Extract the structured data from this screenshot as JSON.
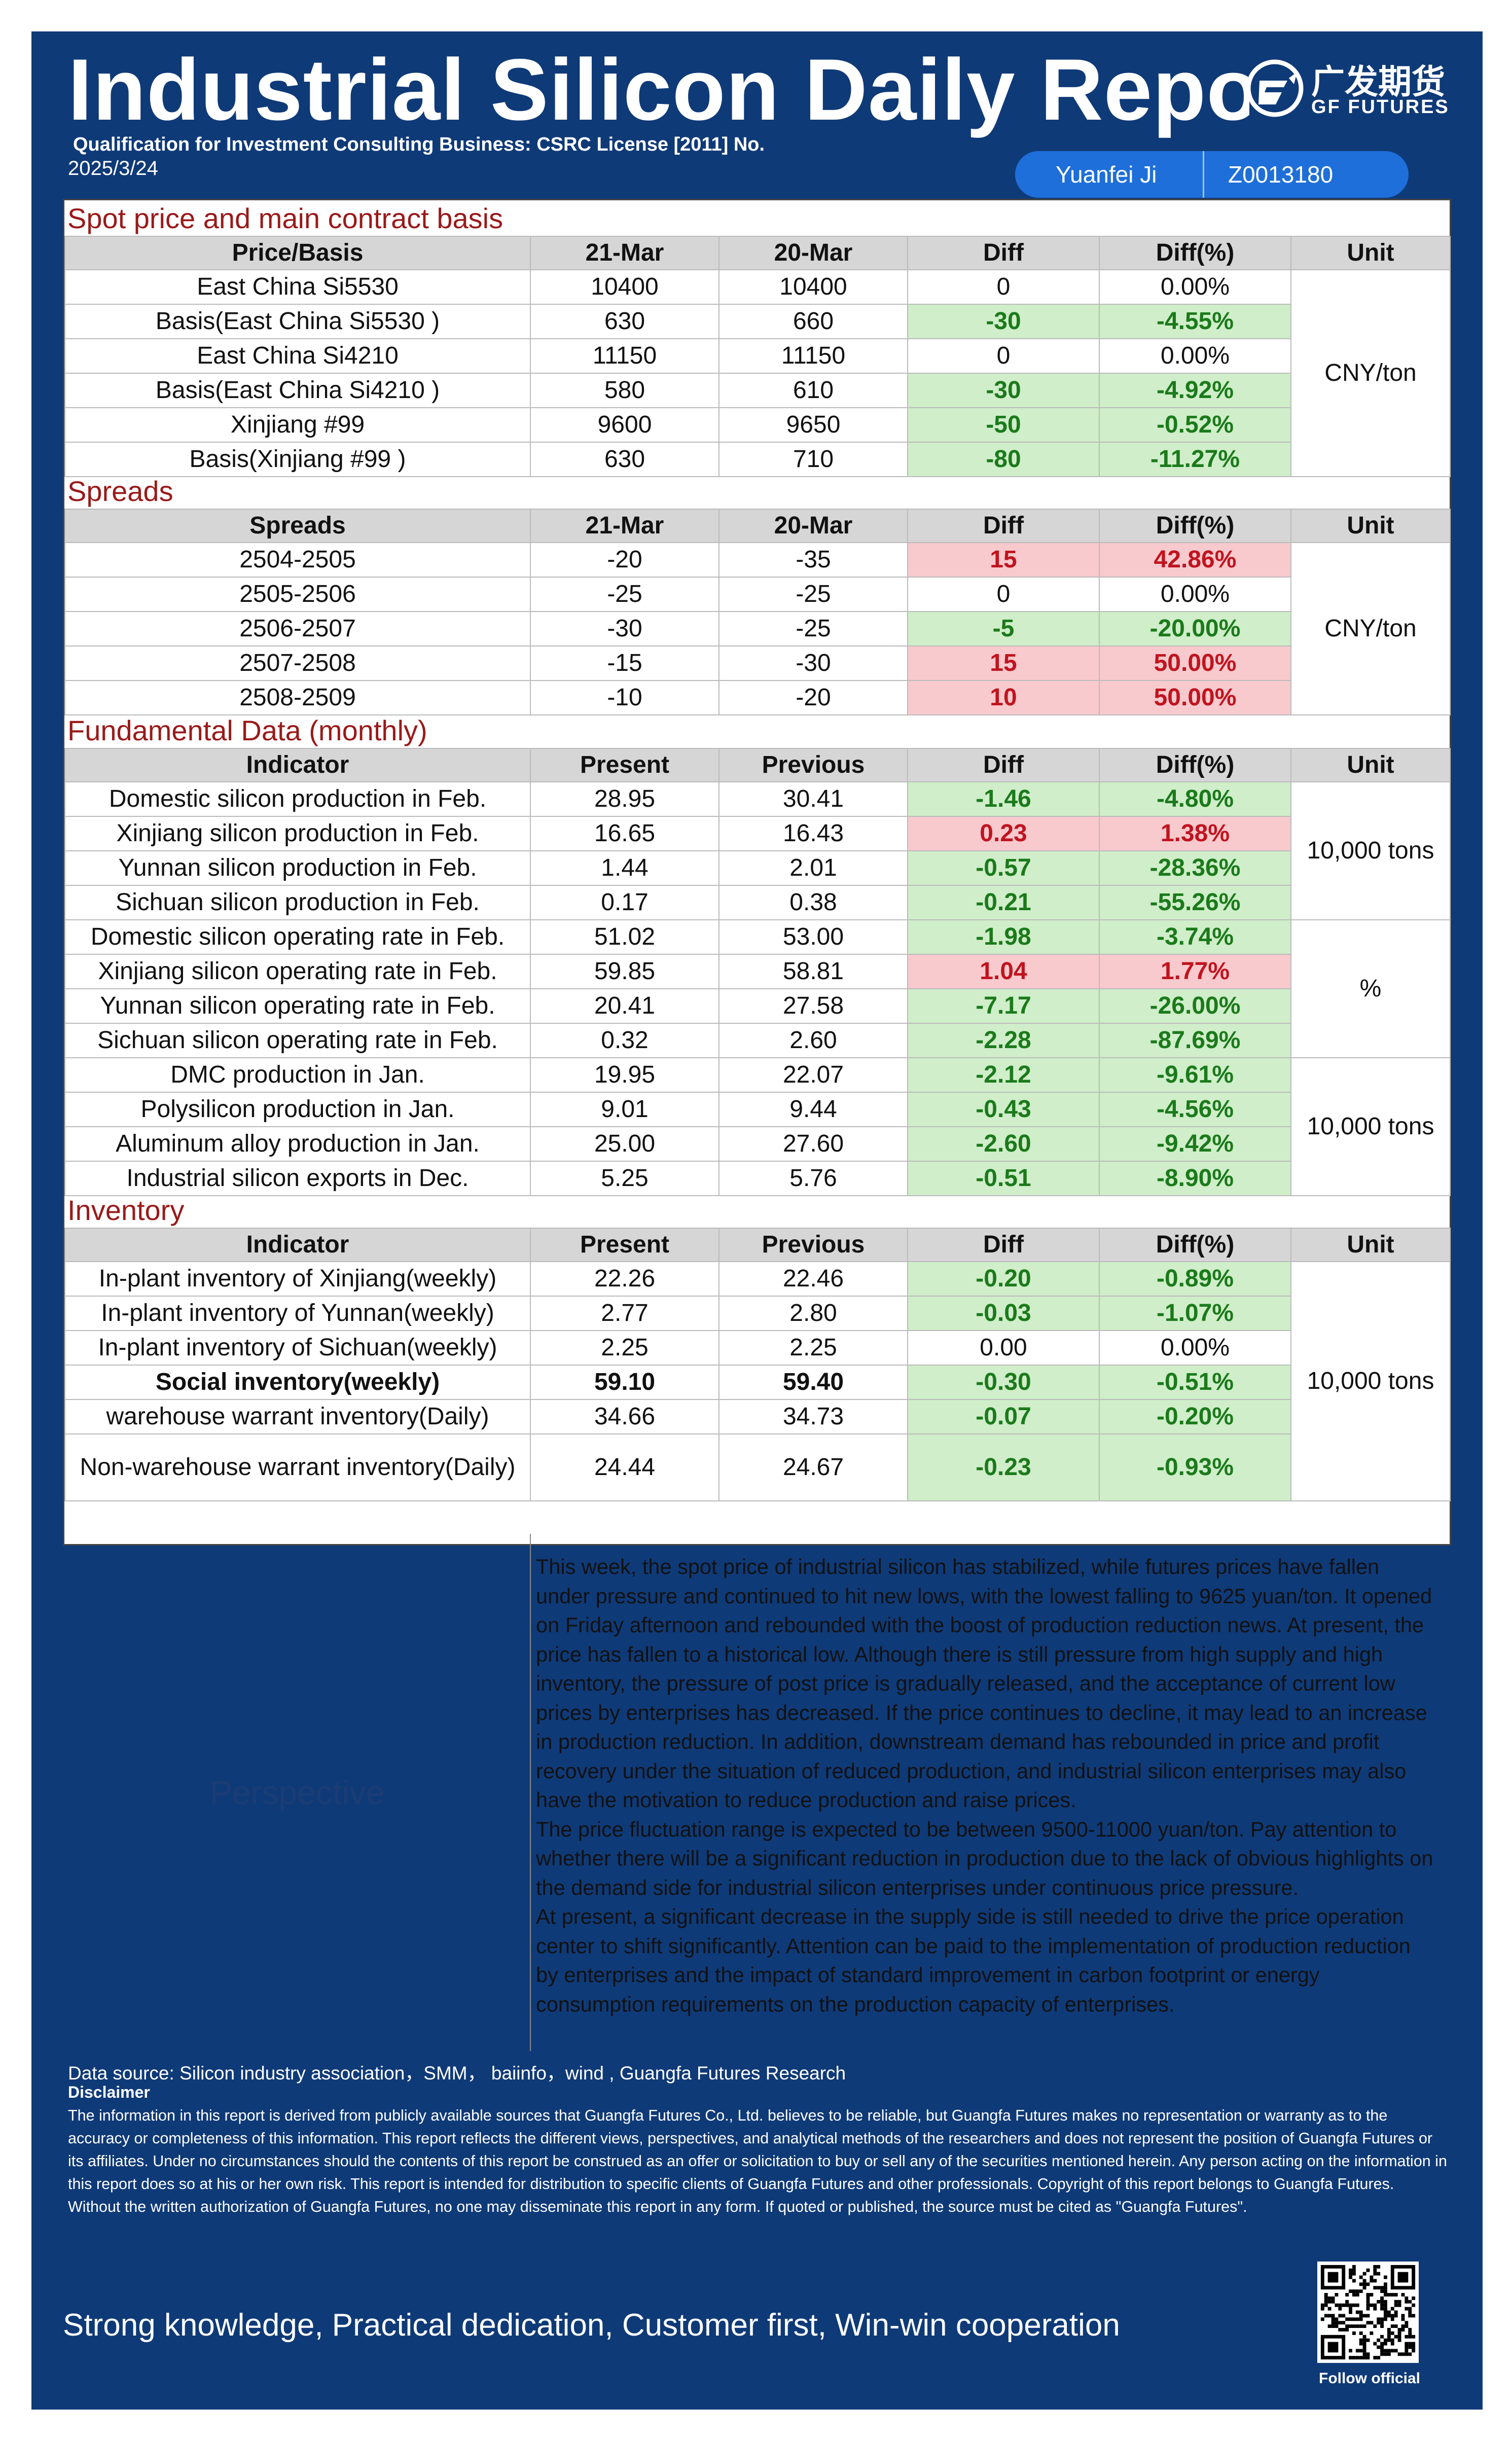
{
  "header": {
    "title": "Industrial Silicon Daily Repo",
    "qualification": "Qualification for Investment Consulting Business: CSRC License [2011] No.",
    "date": "2025/3/24",
    "logo_cn": "广发期货",
    "logo_en": "GF FUTURES",
    "analyst": {
      "name": "Yuanfei Ji",
      "license": "Z0013180"
    },
    "colors": {
      "frame": "#0f3a78",
      "pill": "#1e6fd9",
      "section_title": "#9a1a1a",
      "decrease": "#cfeec9",
      "increase": "#f8c9cd"
    }
  },
  "spot": {
    "title": "Spot price and main contract basis",
    "headers": [
      "Price/Basis",
      "21-Mar",
      "20-Mar",
      "Diff",
      "Diff(%)",
      "Unit"
    ],
    "unit": "CNY/ton",
    "rows": [
      {
        "name": "East China Si5530",
        "cur": "10400",
        "prev": "10400",
        "diff": "0",
        "pct": "0.00%",
        "trend": "flat"
      },
      {
        "name": "Basis(East China Si5530 )",
        "cur": "630",
        "prev": "660",
        "diff": "-30",
        "pct": "-4.55%",
        "trend": "neg"
      },
      {
        "name": "East China Si4210",
        "cur": "11150",
        "prev": "11150",
        "diff": "0",
        "pct": "0.00%",
        "trend": "flat"
      },
      {
        "name": "Basis(East China Si4210 )",
        "cur": "580",
        "prev": "610",
        "diff": "-30",
        "pct": "-4.92%",
        "trend": "neg"
      },
      {
        "name": "Xinjiang #99",
        "cur": "9600",
        "prev": "9650",
        "diff": "-50",
        "pct": "-0.52%",
        "trend": "neg"
      },
      {
        "name": "Basis(Xinjiang #99 )",
        "cur": "630",
        "prev": "710",
        "diff": "-80",
        "pct": "-11.27%",
        "trend": "neg"
      }
    ]
  },
  "spreads": {
    "title": "Spreads",
    "headers": [
      "Spreads",
      "21-Mar",
      "20-Mar",
      "Diff",
      "Diff(%)",
      "Unit"
    ],
    "unit": "CNY/ton",
    "rows": [
      {
        "name": "2504-2505",
        "cur": "-20",
        "prev": "-35",
        "diff": "15",
        "pct": "42.86%",
        "trend": "pos"
      },
      {
        "name": "2505-2506",
        "cur": "-25",
        "prev": "-25",
        "diff": "0",
        "pct": "0.00%",
        "trend": "flat"
      },
      {
        "name": "2506-2507",
        "cur": "-30",
        "prev": "-25",
        "diff": "-5",
        "pct": "-20.00%",
        "trend": "neg"
      },
      {
        "name": "2507-2508",
        "cur": "-15",
        "prev": "-30",
        "diff": "15",
        "pct": "50.00%",
        "trend": "pos"
      },
      {
        "name": "2508-2509",
        "cur": "-10",
        "prev": "-20",
        "diff": "10",
        "pct": "50.00%",
        "trend": "pos"
      }
    ]
  },
  "fundamental": {
    "title": "Fundamental Data (monthly)",
    "headers": [
      "Indicator",
      "Present",
      "Previous",
      "Diff",
      "Diff(%)",
      "Unit"
    ],
    "units": [
      "10,000 tons",
      "%",
      "10,000 tons"
    ],
    "rows": [
      {
        "name": "Domestic silicon production in Feb.",
        "cur": "28.95",
        "prev": "30.41",
        "diff": "-1.46",
        "pct": "-4.80%",
        "trend": "neg"
      },
      {
        "name": "Xinjiang silicon production in Feb.",
        "cur": "16.65",
        "prev": "16.43",
        "diff": "0.23",
        "pct": "1.38%",
        "trend": "pos"
      },
      {
        "name": "Yunnan silicon production in Feb.",
        "cur": "1.44",
        "prev": "2.01",
        "diff": "-0.57",
        "pct": "-28.36%",
        "trend": "neg"
      },
      {
        "name": "Sichuan silicon production in Feb.",
        "cur": "0.17",
        "prev": "0.38",
        "diff": "-0.21",
        "pct": "-55.26%",
        "trend": "neg"
      },
      {
        "name": "Domestic silicon operating rate in Feb.",
        "cur": "51.02",
        "prev": "53.00",
        "diff": "-1.98",
        "pct": "-3.74%",
        "trend": "neg"
      },
      {
        "name": "Xinjiang silicon operating rate in Feb.",
        "cur": "59.85",
        "prev": "58.81",
        "diff": "1.04",
        "pct": "1.77%",
        "trend": "pos"
      },
      {
        "name": "Yunnan silicon operating rate in Feb.",
        "cur": "20.41",
        "prev": "27.58",
        "diff": "-7.17",
        "pct": "-26.00%",
        "trend": "neg"
      },
      {
        "name": "Sichuan silicon operating rate in Feb.",
        "cur": "0.32",
        "prev": "2.60",
        "diff": "-2.28",
        "pct": "-87.69%",
        "trend": "neg"
      },
      {
        "name": "DMC production in Jan.",
        "cur": "19.95",
        "prev": "22.07",
        "diff": "-2.12",
        "pct": "-9.61%",
        "trend": "neg"
      },
      {
        "name": "Polysilicon production in Jan.",
        "cur": "9.01",
        "prev": "9.44",
        "diff": "-0.43",
        "pct": "-4.56%",
        "trend": "neg"
      },
      {
        "name": "Aluminum alloy production in Jan.",
        "cur": "25.00",
        "prev": "27.60",
        "diff": "-2.60",
        "pct": "-9.42%",
        "trend": "neg"
      },
      {
        "name": "Industrial silicon exports in Dec.",
        "cur": "5.25",
        "prev": "5.76",
        "diff": "-0.51",
        "pct": "-8.90%",
        "trend": "neg"
      }
    ]
  },
  "inventory": {
    "title": "Inventory",
    "headers": [
      "Indicator",
      "Present",
      "Previous",
      "Diff",
      "Diff(%)",
      "Unit"
    ],
    "unit": "10,000 tons",
    "rows": [
      {
        "name": "In-plant inventory of Xinjiang(weekly)",
        "cur": "22.26",
        "prev": "22.46",
        "diff": "-0.20",
        "pct": "-0.89%",
        "trend": "neg"
      },
      {
        "name": "In-plant inventory of Yunnan(weekly)",
        "cur": "2.77",
        "prev": "2.80",
        "diff": "-0.03",
        "pct": "-1.07%",
        "trend": "neg"
      },
      {
        "name": "In-plant inventory of Sichuan(weekly)",
        "cur": "2.25",
        "prev": "2.25",
        "diff": "0.00",
        "pct": "0.00%",
        "trend": "flat"
      },
      {
        "name": "Social inventory(weekly)",
        "cur": "59.10",
        "prev": "59.40",
        "diff": "-0.30",
        "pct": "-0.51%",
        "trend": "neg",
        "bold": true
      },
      {
        "name": "warehouse warrant inventory(Daily)",
        "cur": "34.66",
        "prev": "34.73",
        "diff": "-0.07",
        "pct": "-0.20%",
        "trend": "neg"
      },
      {
        "name": "Non-warehouse warrant inventory(Daily)",
        "cur": "24.44",
        "prev": "24.67",
        "diff": "-0.23",
        "pct": "-0.93%",
        "trend": "neg",
        "tall": true
      }
    ]
  },
  "perspective": {
    "label": "Perspective",
    "paragraphs": [
      "This week, the spot price of industrial silicon has stabilized, while futures prices have fallen under pressure and continued to hit new lows, with the lowest falling to 9625 yuan/ton. It opened on Friday afternoon and rebounded with the boost of production reduction news. At present, the price has fallen to a historical low. Although there is still pressure from high supply and high inventory, the pressure of post price is gradually released, and the acceptance of current low prices by enterprises has decreased. If the price continues to decline, it may lead to an increase in production reduction. In addition, downstream demand has rebounded in price and profit recovery under the situation of reduced production, and industrial silicon enterprises may also have the motivation to reduce production and raise prices.",
      "The price fluctuation range is expected to be between 9500-11000 yuan/ton. Pay attention to whether there will be a significant reduction in production due to the lack of obvious highlights on the demand side for industrial silicon enterprises under continuous price pressure.",
      "At present, a significant decrease in the supply side is still needed to drive the price operation center to shift significantly. Attention can be paid to the implementation of production reduction by enterprises and the impact of standard improvement in carbon footprint or energy consumption requirements on the production capacity of enterprises."
    ]
  },
  "footer": {
    "source": "Data source: Silicon industry association，SMM， baiinfo，wind , Guangfa Futures Research",
    "disclaimer_title": "Disclaimer",
    "disclaimer": "The information in this report is derived from publicly available sources that Guangfa Futures Co., Ltd. believes to be reliable, but Guangfa Futures makes no representation or warranty as to the accuracy or completeness of this information. This report reflects the different views, perspectives, and analytical methods of the researchers and does not represent the position of Guangfa Futures or its affiliates. Under no circumstances should the contents of this report be construed as an offer or solicitation to buy or sell any of the securities mentioned herein. Any person acting on the information in this report does so at his or her own risk. This report is intended for distribution to specific clients of Guangfa Futures and other professionals. Copyright of this report belongs to Guangfa Futures. Without the written authorization of Guangfa Futures, no one may disseminate this report in any form. If quoted or published, the source must be cited as \"Guangfa Futures\".",
    "slogan": "Strong knowledge, Practical dedication, Customer first, Win-win cooperation",
    "qr_caption": "Follow official",
    "qr_icon": "qr-code-icon"
  }
}
